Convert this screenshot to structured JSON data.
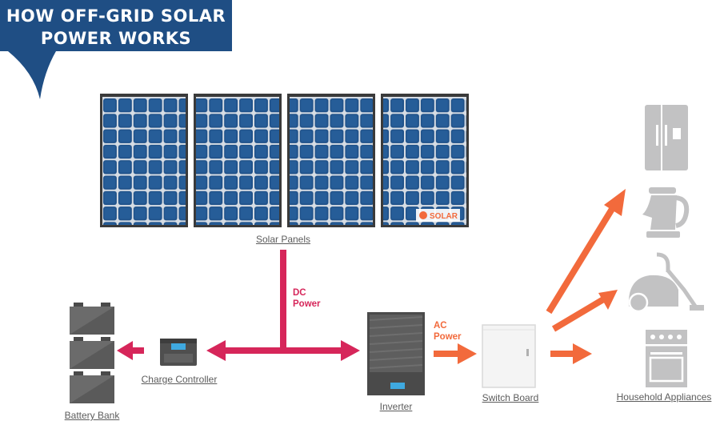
{
  "title": {
    "line1": "HOW OFF-GRID SOLAR",
    "line2": "POWER WORKS"
  },
  "components": {
    "solar_panels": "Solar Panels",
    "charge_controller": "Charge Controller",
    "battery_bank": "Battery Bank",
    "inverter": "Inverter",
    "switch_board": "Switch Board",
    "household_appliances": "Household Appliances"
  },
  "panel_brand": "SOLAR",
  "flows": {
    "dc": {
      "line1": "DC",
      "line2": "Power"
    },
    "ac": {
      "line1": "AC",
      "line2": "Power"
    }
  },
  "colors": {
    "banner": "#1f4e84",
    "dc_power": "#d6265a",
    "ac_power": "#f26a3c",
    "panel_cell": "#20528a",
    "panel_frame": "#3a3a3a",
    "appliance": "#c2c2c3",
    "battery": "#5a5a5a",
    "label_text": "#5c5c5c"
  },
  "icons": [
    "fridge-icon",
    "kettle-icon",
    "vacuum-cleaner-icon",
    "oven-icon",
    "battery-icon",
    "charge-controller-icon",
    "inverter-icon",
    "switch-board-icon"
  ]
}
